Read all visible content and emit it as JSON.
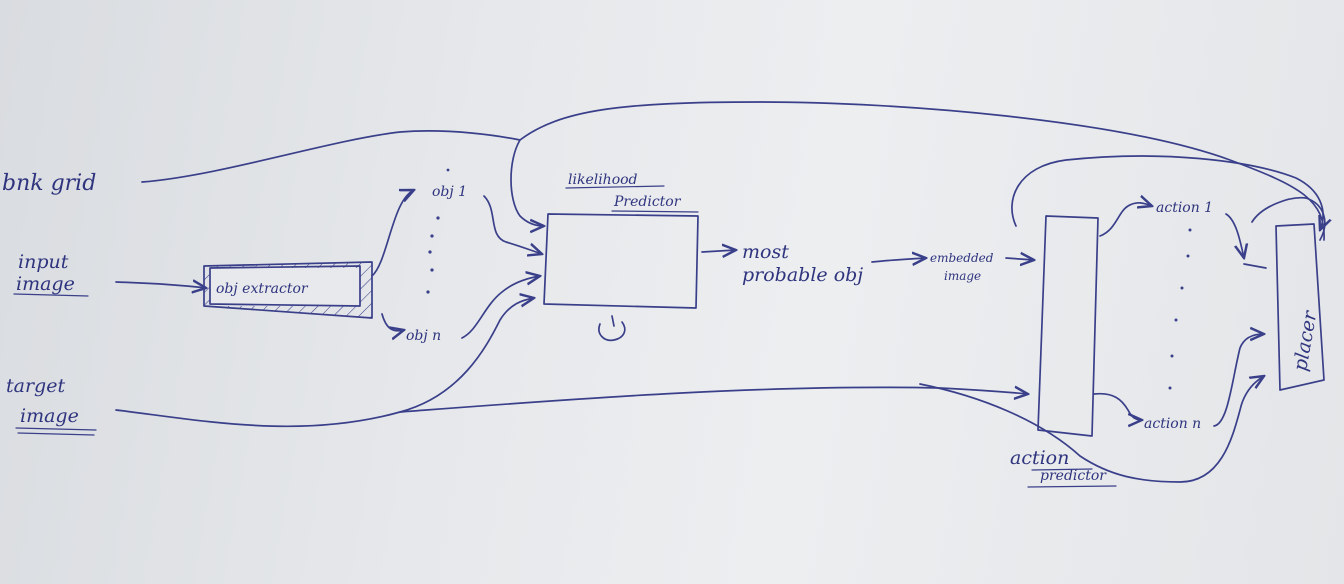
{
  "labels": {
    "blank_grid": "bnk grid",
    "input_image_1": "input",
    "input_image_2": "image",
    "target_image_1": "target",
    "target_image_2": "image",
    "obj_extractor": "obj extractor",
    "obj_1": "obj 1",
    "obj_n": "obj n",
    "likelihood_1": "likelihood",
    "likelihood_2": "Predictor",
    "most_probable_1": "most",
    "most_probable_2": "probable obj",
    "embedded_1": "embedded",
    "embedded_2": "image",
    "action_1": "action 1",
    "action_n": "action n",
    "action_predictor_1": "action",
    "action_predictor_2": "predictor",
    "placer": "placer"
  },
  "colors": {
    "ink": "#3a3f8a",
    "paper": "#e6e8eb"
  }
}
